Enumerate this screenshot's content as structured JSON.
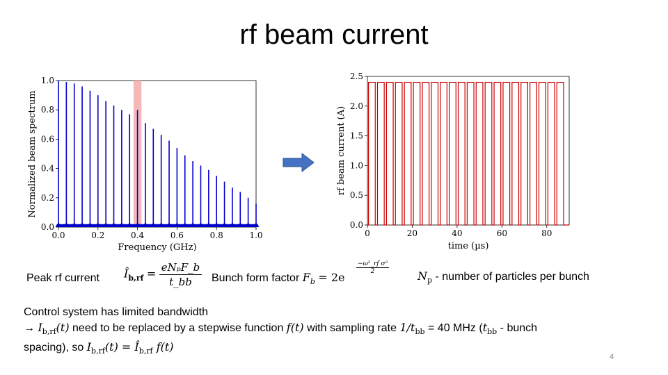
{
  "slide": {
    "title": "rf beam current",
    "page_number": "4"
  },
  "arrow": {
    "color": "#4472C4",
    "icon": "right-arrow"
  },
  "formula_row": {
    "peak_label": "Peak rf current",
    "peak_lhs": "Î",
    "peak_lhs_sub": "b,rf",
    "peak_eq": "=",
    "peak_num": "eNₚF_b",
    "peak_den": "t_bb",
    "bff_label": "Bunch form factor",
    "bff_lhs": "F",
    "bff_lhs_sub": "b",
    "bff_rhs": "= 2e",
    "bff_exp_num": "ω²_rf σ²",
    "bff_exp_den": "2",
    "np_symbol": "N",
    "np_sub": "p",
    "np_text": " - number of particles per bunch"
  },
  "body": {
    "line1": "Control system has limited bandwidth",
    "line2_arrow": "→",
    "line2_a": "I",
    "line2_a_sub": "b,rf",
    "line2_b": "(t)",
    "line2_c": " need to be replaced by a stepwise function ",
    "line2_d": "f(t)",
    "line2_e": " with sampling rate ",
    "line2_f": "1/t",
    "line2_f_sub": "bb",
    "line2_g": " = 40 MHz (",
    "line2_h": "t",
    "line2_h_sub": "bb",
    "line2_i": " - bunch",
    "line3_a": "spacing), so ",
    "line3_b": "I",
    "line3_b_sub": "b,rf",
    "line3_c": "(t) = ",
    "line3_d": "Î",
    "line3_d_sub": "b,rf",
    "line3_e": " f(t)"
  },
  "chart_data": [
    {
      "type": "bar",
      "xlabel": "Frequency (GHz)",
      "ylabel": "Normalized beam spectrum",
      "xlim": [
        0.0,
        1.0
      ],
      "ylim": [
        0.0,
        1.0
      ],
      "xticks": [
        "0.0",
        "0.2",
        "0.4",
        "0.6",
        "0.8",
        "1.0"
      ],
      "yticks": [
        "0.0",
        "0.2",
        "0.4",
        "0.6",
        "0.8",
        "1.0"
      ],
      "line_color": "#0000cc",
      "highlight_band": {
        "x": [
          0.38,
          0.42
        ],
        "color": "#f5b8b8"
      },
      "x": [
        0.0,
        0.04,
        0.08,
        0.12,
        0.16,
        0.2,
        0.24,
        0.28,
        0.32,
        0.36,
        0.4,
        0.44,
        0.48,
        0.52,
        0.56,
        0.6,
        0.64,
        0.68,
        0.72,
        0.76,
        0.8,
        0.84,
        0.88,
        0.92,
        0.96,
        1.0
      ],
      "values": [
        1.0,
        0.99,
        0.98,
        0.96,
        0.93,
        0.9,
        0.86,
        0.83,
        0.8,
        0.77,
        0.8,
        0.71,
        0.67,
        0.63,
        0.59,
        0.54,
        0.49,
        0.45,
        0.42,
        0.39,
        0.35,
        0.31,
        0.27,
        0.24,
        0.2,
        0.16
      ]
    },
    {
      "type": "line",
      "xlabel": "time (µs)",
      "ylabel": "rf beam current (A)",
      "xlim": [
        0,
        90
      ],
      "ylim": [
        0.0,
        2.5
      ],
      "xticks": [
        "0",
        "20",
        "40",
        "60",
        "80"
      ],
      "yticks": [
        "0.0",
        "0.5",
        "1.0",
        "1.5",
        "2.0",
        "2.5"
      ],
      "line_color": "#cc0000",
      "pulse_period": 4.0,
      "pulse_width": 3.0,
      "pulse_start": 0.5,
      "pulse_high": 2.4,
      "pulse_count": 22
    }
  ]
}
